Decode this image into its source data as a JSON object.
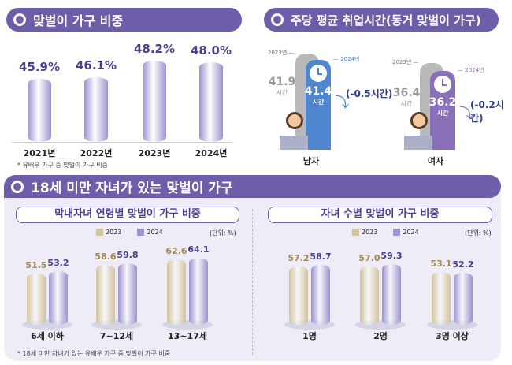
{
  "colors": {
    "header": "#6e5ea9",
    "bar_purple": "#9c93cf",
    "bar_gold": "#d2c49c",
    "value_purple": "#4b3f91",
    "value_gold": "#a48a52",
    "men_bar": "#4e86d0",
    "women_bar": "#8a70b8",
    "gray_bar": "#b9b9b9"
  },
  "section1": {
    "title": "맞벌이 가구 비중",
    "footnote": "* 유배우 가구 중 맞벌이 가구 비중"
  },
  "section2": {
    "title": "주당 평균 취업시간(동거 맞벌이 가구)",
    "groups": [
      {
        "label": "남자",
        "year_prev": "2023년",
        "year_cur": "2024년",
        "prev_value": "41.9",
        "cur_value": "41.4",
        "unit": "시간",
        "change": "(-0.5시간)",
        "icon": "clock-icon"
      },
      {
        "label": "여자",
        "year_prev": "2023년",
        "year_cur": "2024년",
        "prev_value": "36.4",
        "cur_value": "36.2",
        "unit": "시간",
        "change": "(-0.2시간)",
        "icon": "clock-icon"
      }
    ]
  },
  "section3": {
    "title": "18세 미만 자녀가 있는 맞벌이 가구",
    "footnote": "* 18세 미만 자녀가 있는 유배우 가구 중 맞벌이 가구 비중",
    "left_title": "막내자녀 연령별 맞벌이 가구 비중",
    "right_title": "자녀 수별 맞벌이 가구 비중",
    "unit": "(단위: %)"
  },
  "chart_data": [
    {
      "type": "bar",
      "categories": [
        "2021년",
        "2022년",
        "2023년",
        "2024년"
      ],
      "values": [
        45.9,
        46.1,
        48.2,
        48.0
      ],
      "value_labels": [
        "45.9%",
        "46.1%",
        "48.2%",
        "48.0%"
      ]
    },
    {
      "type": "bar",
      "categories": [
        "남자",
        "여자"
      ],
      "series": [
        {
          "name": "2023년",
          "values": [
            41.9,
            36.4
          ]
        },
        {
          "name": "2024년",
          "values": [
            41.4,
            36.2
          ]
        }
      ]
    },
    {
      "type": "bar",
      "categories": [
        "6세 이하",
        "7~12세",
        "13~17세"
      ],
      "series": [
        {
          "name": "2023",
          "values": [
            51.5,
            58.6,
            62.6
          ]
        },
        {
          "name": "2024",
          "values": [
            53.2,
            59.8,
            64.1
          ]
        }
      ],
      "value_labels": [
        [
          "51.5",
          "58.6",
          "62.6"
        ],
        [
          "53.2",
          "59.8",
          "64.1"
        ]
      ]
    },
    {
      "type": "bar",
      "categories": [
        "1명",
        "2명",
        "3명 이상"
      ],
      "series": [
        {
          "name": "2023",
          "values": [
            57.2,
            57.0,
            53.1
          ]
        },
        {
          "name": "2024",
          "values": [
            58.7,
            59.3,
            52.2
          ]
        }
      ],
      "value_labels": [
        [
          "57.2",
          "57.0",
          "53.1"
        ],
        [
          "58.7",
          "59.3",
          "52.2"
        ]
      ]
    }
  ]
}
